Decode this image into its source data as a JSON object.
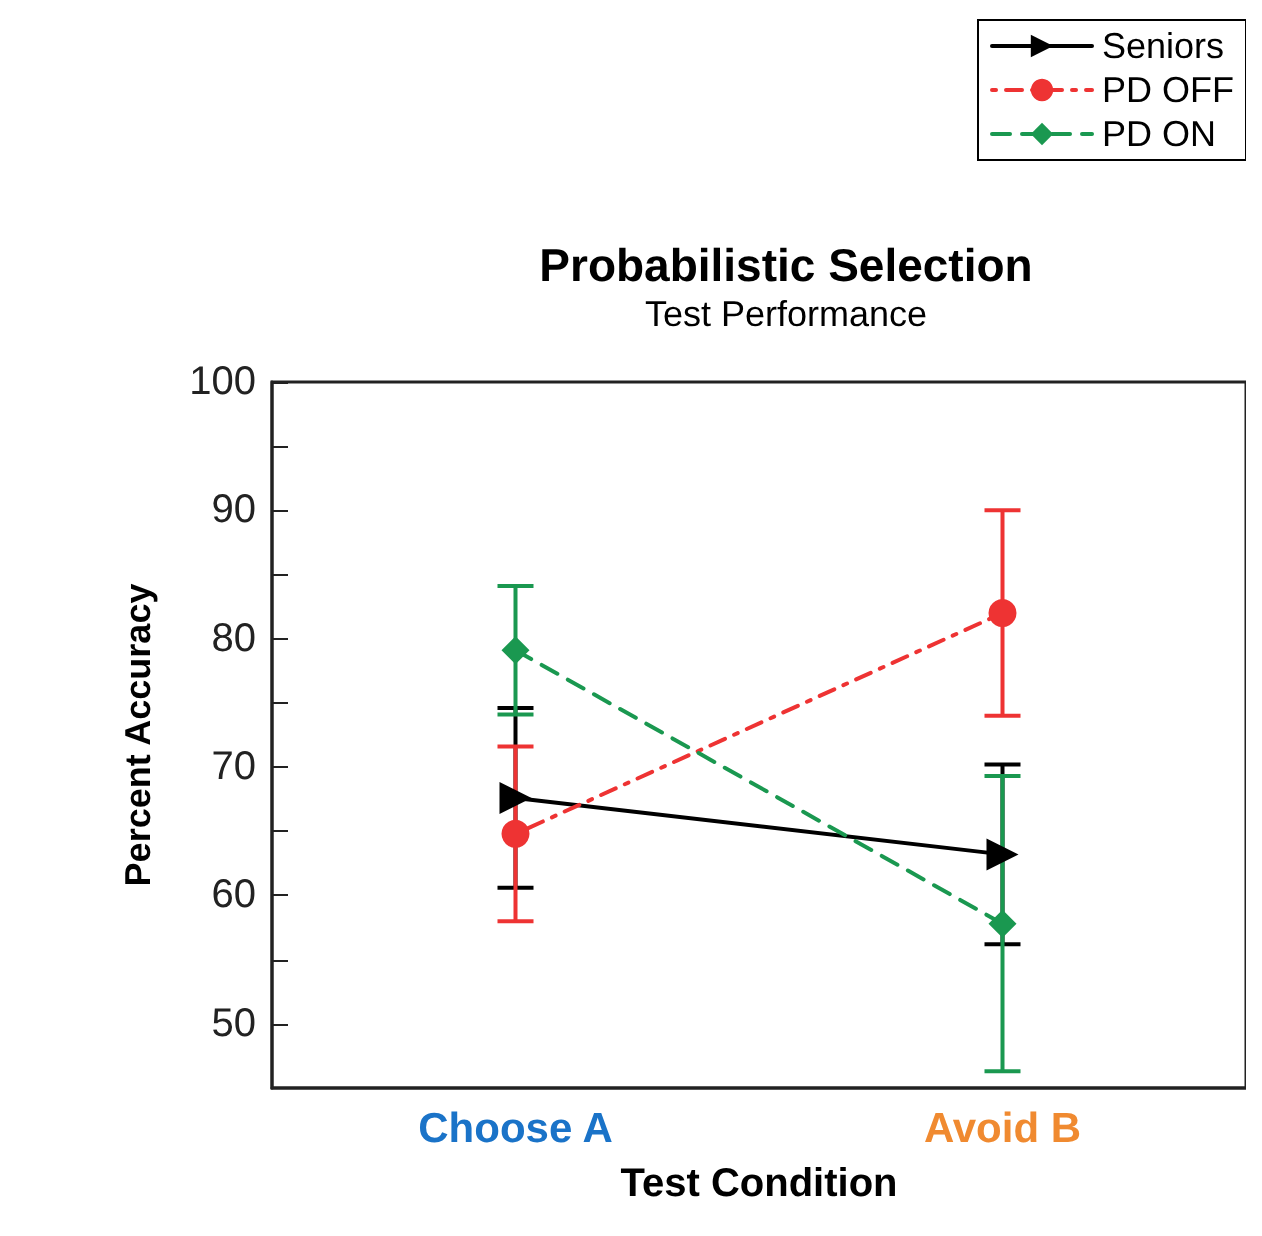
{
  "chart_data": {
    "type": "line",
    "title": "Probabilistic Selection",
    "subtitle": "Test Performance",
    "xlabel": "Test Condition",
    "ylabel": "Percent Accuracy",
    "categories": [
      "Choose A",
      "Avoid B"
    ],
    "series": [
      {
        "name": "Seniors",
        "color": "#000000",
        "values": [
          67.6,
          63.2
        ],
        "errors": [
          7,
          7
        ],
        "marker": "triangle",
        "line_style": "solid"
      },
      {
        "name": "PD OFF",
        "color": "#ee3333",
        "values": [
          64.8,
          82
        ],
        "errors": [
          6.8,
          8
        ],
        "marker": "circle",
        "line_style": "dotted"
      },
      {
        "name": "PD ON",
        "color": "#1a9850",
        "values": [
          79.1,
          57.8
        ],
        "errors": [
          5,
          11.5
        ],
        "marker": "diamond",
        "line_style": "dashed"
      }
    ],
    "ylim": [
      45,
      100
    ],
    "yticks": [
      50,
      {
        "value": 55,
        "label": null
      },
      60,
      {
        "value": 65,
        "label": null
      },
      70,
      {
        "value": 75,
        "label": null
      },
      80,
      {
        "value": 85,
        "label": null
      },
      90,
      {
        "value": 95,
        "label": null
      },
      100
    ],
    "grid": false,
    "legend": "top right"
  }
}
